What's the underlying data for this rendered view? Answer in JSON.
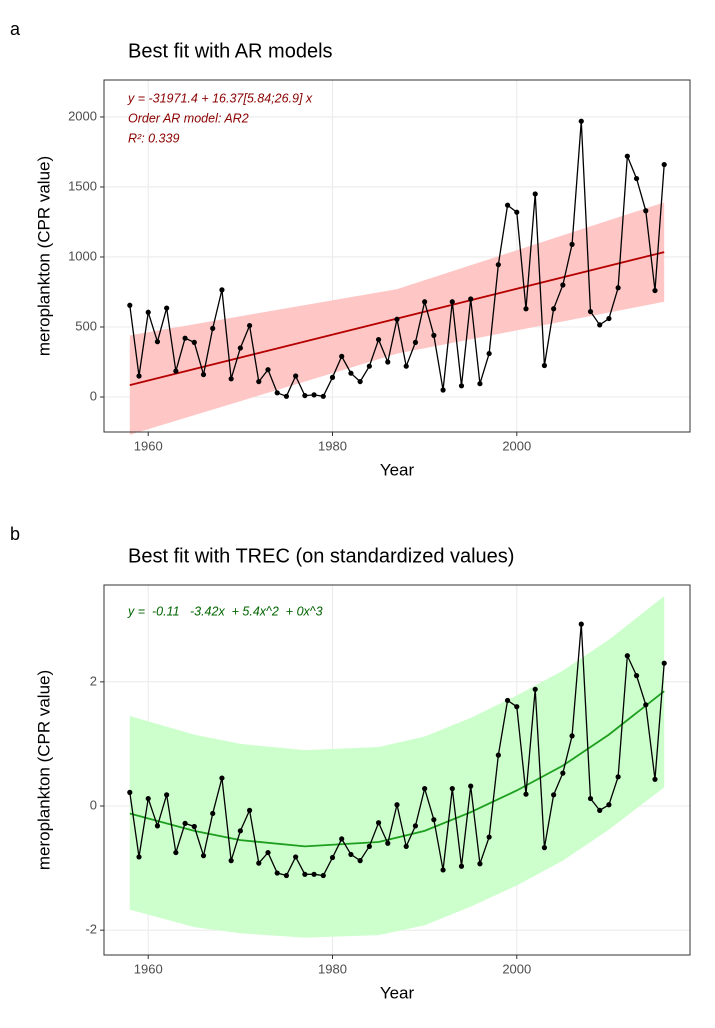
{
  "chart_data": [
    {
      "type": "line",
      "panel_label": "a",
      "title": "Best fit with AR models",
      "x_label": "Year",
      "y_label": "meroplankton (CPR value)",
      "annotations": [
        "y = -31971.4 + 16.37[5.84;26.9] x",
        "Order AR model: AR2",
        "R²: 0.339"
      ],
      "annotation_color": "#8b0000",
      "x": [
        1958,
        1959,
        1960,
        1961,
        1962,
        1963,
        1964,
        1965,
        1966,
        1967,
        1968,
        1969,
        1970,
        1971,
        1972,
        1973,
        1974,
        1975,
        1976,
        1977,
        1978,
        1979,
        1980,
        1981,
        1982,
        1983,
        1984,
        1985,
        1986,
        1987,
        1988,
        1989,
        1990,
        1991,
        1992,
        1993,
        1994,
        1995,
        1996,
        1997,
        1998,
        1999,
        2000,
        2001,
        2002,
        2003,
        2004,
        2005,
        2006,
        2007,
        2008,
        2009,
        2010,
        2011,
        2012,
        2013,
        2014,
        2015,
        2016
      ],
      "series": [
        {
          "color": "#000000",
          "values": [
            655,
            150,
            605,
            395,
            635,
            185,
            420,
            390,
            160,
            490,
            765,
            130,
            350,
            510,
            110,
            195,
            30,
            5,
            150,
            10,
            15,
            5,
            140,
            290,
            170,
            110,
            220,
            410,
            250,
            555,
            220,
            390,
            680,
            440,
            50,
            680,
            80,
            700,
            95,
            310,
            945,
            1370,
            1320,
            630,
            1450,
            225,
            630,
            800,
            1090,
            1970,
            610,
            515,
            560,
            780,
            1720,
            1560,
            1330,
            760,
            1660
          ]
        }
      ],
      "trend": {
        "color": "#b40000",
        "x": [
          1958,
          2016
        ],
        "values": [
          85,
          1035
        ]
      },
      "band": {
        "color": "#ffc6c6",
        "x": [
          1958,
          1987,
          2016
        ],
        "lower": [
          -270,
          310,
          680
        ],
        "upper": [
          440,
          770,
          1390
        ]
      },
      "xlim": [
        1955.2,
        2018.8
      ],
      "ylim": [
        -250,
        2264
      ],
      "xticks": [
        1960,
        1980,
        2000
      ],
      "yticks": [
        0,
        500,
        1000,
        1500,
        2000
      ],
      "grid": true
    },
    {
      "type": "line",
      "panel_label": "b",
      "title": "Best fit with TREC (on standardized values)",
      "x_label": "Year",
      "y_label": "meroplankton (CPR value)",
      "annotations": [
        "y =  -0.11   -3.42x  + 5.4x^2  + 0x^3"
      ],
      "annotation_color": "#006400",
      "x": [
        1958,
        1959,
        1960,
        1961,
        1962,
        1963,
        1964,
        1965,
        1966,
        1967,
        1968,
        1969,
        1970,
        1971,
        1972,
        1973,
        1974,
        1975,
        1976,
        1977,
        1978,
        1979,
        1980,
        1981,
        1982,
        1983,
        1984,
        1985,
        1986,
        1987,
        1988,
        1989,
        1990,
        1991,
        1992,
        1993,
        1994,
        1995,
        1996,
        1997,
        1998,
        1999,
        2000,
        2001,
        2002,
        2003,
        2004,
        2005,
        2006,
        2007,
        2008,
        2009,
        2010,
        2011,
        2012,
        2013,
        2014,
        2015,
        2016
      ],
      "series": [
        {
          "color": "#000000",
          "values": [
            0.22,
            -0.82,
            0.12,
            -0.32,
            0.18,
            -0.75,
            -0.28,
            -0.33,
            -0.8,
            -0.12,
            0.45,
            -0.88,
            -0.4,
            -0.07,
            -0.92,
            -0.75,
            -1.08,
            -1.12,
            -0.82,
            -1.1,
            -1.1,
            -1.12,
            -0.83,
            -0.53,
            -0.78,
            -0.88,
            -0.65,
            -0.27,
            -0.6,
            0.02,
            -0.65,
            -0.32,
            0.28,
            -0.22,
            -1.03,
            0.28,
            -0.97,
            0.32,
            -0.93,
            -0.5,
            0.82,
            1.7,
            1.6,
            0.19,
            1.88,
            -0.67,
            0.18,
            0.53,
            1.13,
            2.93,
            0.12,
            -0.07,
            0.02,
            0.47,
            2.42,
            2.1,
            1.63,
            0.43,
            2.3
          ]
        }
      ],
      "trend": {
        "color": "#1e9e1e",
        "x": [
          1958,
          1965,
          1970,
          1977,
          1985,
          1990,
          1995,
          2000,
          2005,
          2010,
          2016
        ],
        "values": [
          -0.12,
          -0.4,
          -0.55,
          -0.65,
          -0.58,
          -0.4,
          -0.1,
          0.25,
          0.65,
          1.15,
          1.85
        ]
      },
      "band": {
        "color": "#ccffcc",
        "x": [
          1958,
          1965,
          1970,
          1977,
          1985,
          1990,
          1995,
          2000,
          2005,
          2010,
          2016
        ],
        "lower": [
          -1.67,
          -1.95,
          -2.05,
          -2.12,
          -2.08,
          -1.92,
          -1.62,
          -1.28,
          -0.88,
          -0.38,
          0.3
        ],
        "upper": [
          1.45,
          1.15,
          1.0,
          0.9,
          0.95,
          1.12,
          1.42,
          1.78,
          2.18,
          2.68,
          3.38
        ]
      },
      "xlim": [
        1955.2,
        2018.8
      ],
      "ylim": [
        -2.4,
        3.56
      ],
      "xticks": [
        1960,
        1980,
        2000
      ],
      "yticks": [
        -2,
        0,
        2
      ],
      "grid": true
    }
  ]
}
